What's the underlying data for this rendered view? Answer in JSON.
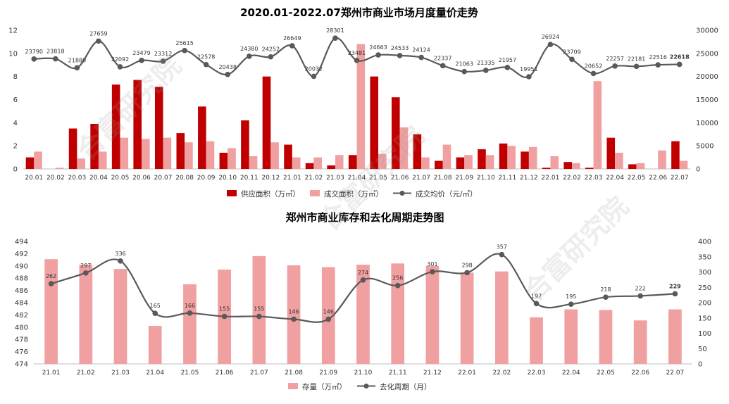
{
  "watermark": "合富研究院",
  "chart_data": [
    {
      "type": "bar+line",
      "title": "2020.01-2022.07郑州市商业市场月度量价走势",
      "categories": [
        "20.01",
        "20.02",
        "20.03",
        "20.04",
        "20.05",
        "20.06",
        "20.07",
        "20.08",
        "20.09",
        "20.10",
        "20.11",
        "20.12",
        "21.01",
        "21.02",
        "21.03",
        "21.04",
        "21.05",
        "21.06",
        "21.07",
        "21.08",
        "21.09",
        "21.10",
        "21.11",
        "21.12",
        "22.01",
        "22.02",
        "22.03",
        "22.04",
        "22.05",
        "22.06",
        "22.07"
      ],
      "y_left": {
        "min": 0,
        "max": 12,
        "ticks": [
          0,
          2,
          4,
          6,
          8,
          10,
          12
        ]
      },
      "y_right": {
        "min": 0,
        "max": 30000,
        "ticks": [
          0,
          5000,
          10000,
          15000,
          20000,
          25000,
          30000
        ]
      },
      "series": [
        {
          "name": "供应面积（万㎡）",
          "kind": "bar",
          "axis": "left",
          "color": "#c00000",
          "values": [
            1.0,
            0.0,
            3.5,
            3.9,
            7.3,
            7.7,
            7.1,
            3.1,
            5.4,
            1.4,
            4.2,
            8.0,
            2.1,
            0.5,
            0.3,
            1.2,
            8.0,
            6.2,
            3.0,
            0.7,
            1.0,
            1.7,
            2.2,
            1.5,
            0.1,
            0.6,
            0.1,
            2.7,
            0.4,
            0.0,
            2.4
          ]
        },
        {
          "name": "成交面积（万㎡）",
          "kind": "bar",
          "axis": "left",
          "color": "#f0a0a0",
          "values": [
            1.5,
            0.1,
            0.9,
            1.5,
            2.7,
            2.6,
            2.7,
            2.3,
            2.4,
            1.8,
            1.1,
            2.3,
            1.0,
            1.0,
            1.2,
            10.8,
            1.3,
            3.6,
            1.0,
            2.1,
            1.2,
            1.2,
            2.0,
            1.9,
            1.1,
            0.5,
            7.6,
            1.4,
            0.5,
            1.6,
            0.7
          ]
        },
        {
          "name": "成交均价（元/㎡）",
          "kind": "line",
          "axis": "right",
          "color": "#595959",
          "values": [
            23790,
            23818,
            21880,
            27659,
            22092,
            23479,
            23312,
            25615,
            22578,
            20438,
            24380,
            24252,
            26649,
            20032,
            28301,
            23481,
            24663,
            24533,
            24124,
            22337,
            21063,
            21335,
            21957,
            19951,
            26924,
            23709,
            20652,
            22257,
            22181,
            22516,
            22618
          ]
        }
      ]
    },
    {
      "type": "bar+line",
      "title": "郑州市商业库存和去化周期走势图",
      "categories": [
        "21.01",
        "21.02",
        "21.03",
        "21.04",
        "21.05",
        "21.06",
        "21.07",
        "21.08",
        "21.09",
        "21.10",
        "21.11",
        "21.12",
        "22.01",
        "22.02",
        "22.03",
        "22.04",
        "22.05",
        "22.06",
        "22.07"
      ],
      "y_left": {
        "min": 474,
        "max": 494,
        "ticks": [
          474,
          476,
          478,
          480,
          482,
          484,
          486,
          488,
          490,
          492,
          494
        ]
      },
      "y_right": {
        "min": 0,
        "max": 400,
        "ticks": [
          0,
          50,
          100,
          150,
          200,
          250,
          300,
          350,
          400
        ]
      },
      "series": [
        {
          "name": "存量（万㎡）",
          "kind": "bar",
          "axis": "left",
          "color": "#f0a0a0",
          "values": [
            491.1,
            490.2,
            489.5,
            480.2,
            487.0,
            489.4,
            491.6,
            490.1,
            489.8,
            490.2,
            490.4,
            490.0,
            488.9,
            489.1,
            481.6,
            482.9,
            482.8,
            481.1,
            482.9
          ]
        },
        {
          "name": "去化周期（月）",
          "kind": "line",
          "axis": "right",
          "color": "#595959",
          "values": [
            262,
            297,
            336,
            165,
            166,
            155,
            155,
            146,
            146,
            274,
            256,
            301,
            298,
            357,
            197,
            195,
            218,
            222,
            229
          ]
        }
      ]
    }
  ]
}
